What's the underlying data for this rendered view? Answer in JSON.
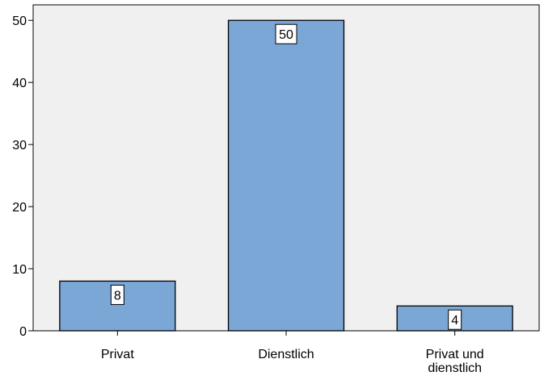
{
  "chart_data": {
    "type": "bar",
    "title": "",
    "xlabel": "",
    "ylabel": "",
    "categories": [
      "Privat",
      "Dienstlich",
      "Privat und dienstlich"
    ],
    "category_label_lines": [
      [
        "Privat"
      ],
      [
        "Dienstlich"
      ],
      [
        "Privat und",
        "dienstlich"
      ]
    ],
    "values": [
      8,
      50,
      4
    ],
    "data_labels": [
      "8",
      "50",
      "4"
    ],
    "ylim": [
      0,
      52.5
    ],
    "yticks": [
      0,
      10,
      20,
      30,
      40,
      50
    ],
    "ytick_labels": [
      "0",
      "10",
      "20",
      "30",
      "40",
      "50"
    ],
    "grid": false,
    "legend": "none",
    "colors": {
      "bar_fill": "#7BA7D6",
      "bar_stroke": "#000000",
      "plot_background": "#F0F0F0",
      "axis": "#000000"
    }
  }
}
